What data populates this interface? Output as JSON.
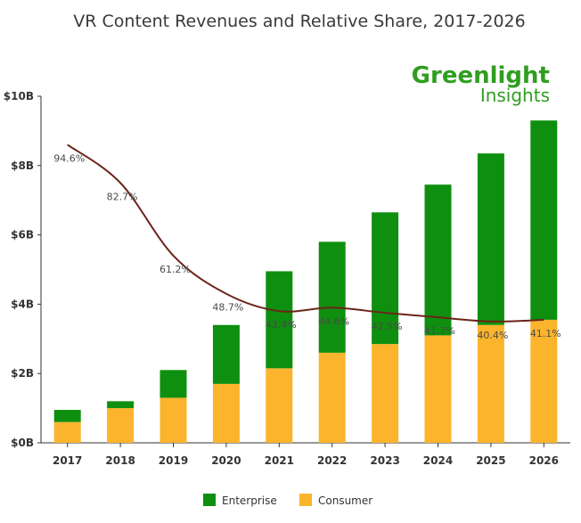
{
  "chart_data": {
    "type": "bar",
    "title": "VR Content Revenues and Relative Share, 2017-2026",
    "brand": {
      "line1": "Greenlight",
      "line2": "Insights",
      "color": "#2f9e1f"
    },
    "categories": [
      "2017",
      "2018",
      "2019",
      "2020",
      "2021",
      "2022",
      "2023",
      "2024",
      "2025",
      "2026"
    ],
    "stacked": true,
    "series": [
      {
        "name": "Consumer",
        "color": "#fbb42c",
        "values": [
          0.6,
          1.0,
          1.3,
          1.7,
          2.15,
          2.6,
          2.85,
          3.1,
          3.4,
          3.55
        ]
      },
      {
        "name": "Enterprise",
        "color": "#0f8f0f",
        "values": [
          0.35,
          0.2,
          0.8,
          1.7,
          2.8,
          3.2,
          3.8,
          4.35,
          4.95,
          5.75
        ]
      }
    ],
    "line_series": {
      "color": "#6b2418",
      "labels": [
        "94.6%",
        "82.7%",
        "61.2%",
        "48.7%",
        "43.4%",
        "44.6%",
        "42.5%",
        "41.7%",
        "40.4%",
        "41.1%"
      ],
      "values": [
        8.6,
        7.5,
        5.4,
        4.3,
        3.8,
        3.9,
        3.75,
        3.62,
        3.5,
        3.55
      ]
    },
    "y_ticks": [
      0,
      2,
      4,
      6,
      8,
      10
    ],
    "y_tick_labels": [
      "$0B",
      "$2B",
      "$4B",
      "$6B",
      "$8B",
      "$10B"
    ],
    "ylim": [
      0,
      10
    ],
    "grid": false,
    "legend_position": "bottom-center",
    "legend": [
      "Enterprise",
      "Consumer"
    ]
  }
}
